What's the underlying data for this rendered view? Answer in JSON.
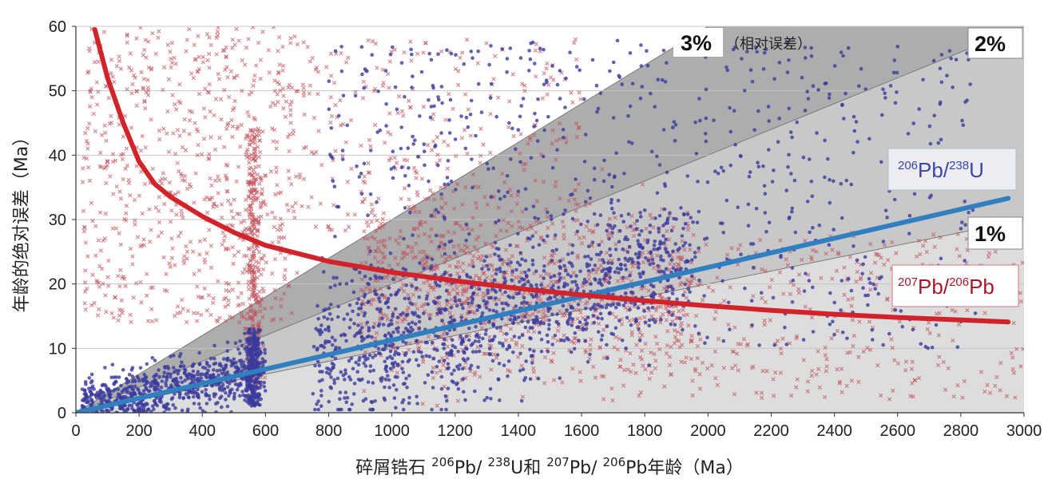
{
  "chart_data": {
    "type": "scatter",
    "xlabel_parts": [
      "碎屑锆石 ",
      "206",
      "Pb/ ",
      "238",
      "U和 ",
      "207",
      "Pb/ ",
      "206",
      "Pb年龄（Ma）"
    ],
    "ylabel": "年龄的绝对误差（Ma）",
    "xlim": [
      0,
      3000
    ],
    "ylim": [
      0,
      60
    ],
    "xticks": [
      "0",
      "200",
      "400",
      "600",
      "800",
      "1000",
      "1200",
      "1400",
      "1600",
      "1800",
      "2000",
      "2200",
      "2400",
      "2600",
      "2800",
      "3000"
    ],
    "yticks": [
      "0",
      "10",
      "20",
      "30",
      "40",
      "50",
      "60"
    ],
    "grid": "horizontal",
    "bands": [
      {
        "label": "3%",
        "note": "（相对误差）",
        "slope": 0.03,
        "color": "#adadad"
      },
      {
        "label": "2%",
        "slope": 0.02,
        "color": "#c8c8c8"
      },
      {
        "label": "1%",
        "slope": 0.01,
        "color": "#dddddd"
      }
    ],
    "series": [
      {
        "name_parts": [
          "206",
          "Pb/",
          "238",
          "U"
        ],
        "marker": "circle",
        "color": "#3b3b9c",
        "trend": {
          "x": [
            0,
            2950
          ],
          "y": [
            0,
            33.3
          ]
        },
        "trend_color": "#2f7fc1"
      },
      {
        "name_parts": [
          "207",
          "Pb/",
          "206",
          "Pb"
        ],
        "marker": "x",
        "color": "#c0505a",
        "trend": {
          "x": [
            60,
            100,
            150,
            200,
            250,
            300,
            400,
            500,
            600,
            800,
            1000,
            1200,
            1400,
            1600,
            1800,
            2000,
            2200,
            2400,
            2600,
            2800,
            2950
          ],
          "y": [
            59.5,
            52,
            45,
            39,
            35.5,
            33.5,
            30.5,
            28,
            26,
            23.5,
            21.8,
            20.5,
            19.3,
            18.3,
            17.4,
            16.6,
            15.9,
            15.3,
            14.8,
            14.4,
            14.1
          ]
        },
        "trend_color": "#d2232a"
      }
    ]
  }
}
